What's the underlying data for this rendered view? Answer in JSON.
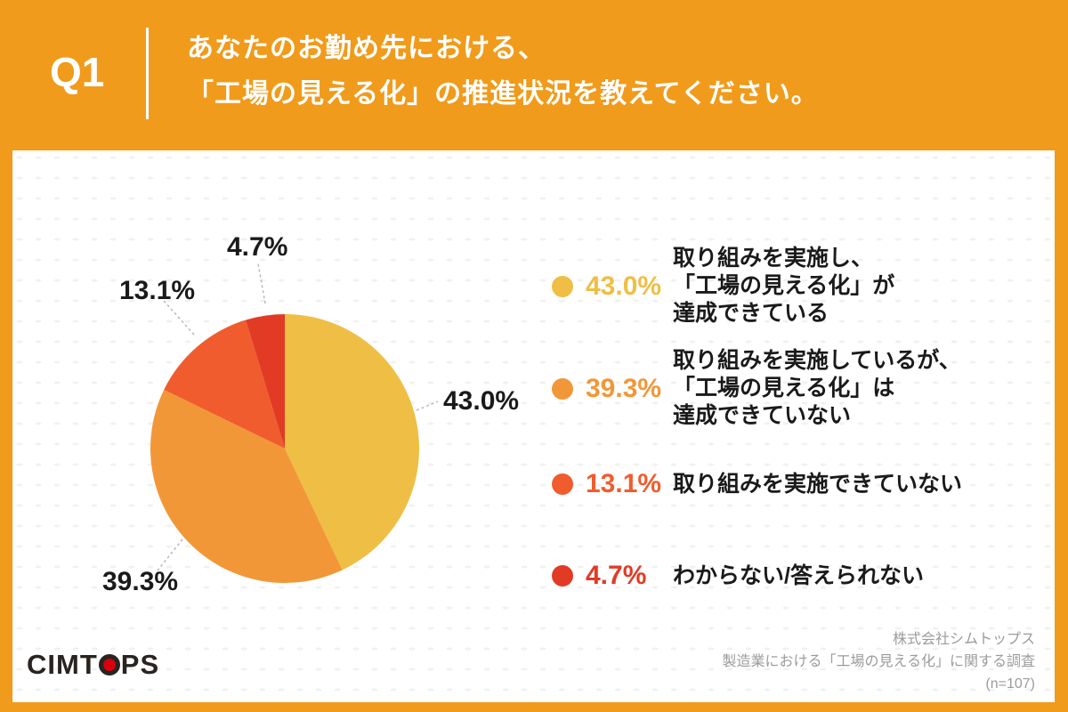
{
  "header": {
    "question_number": "Q1",
    "title_line1": "あなたのお勤め先における、",
    "title_line2": "「工場の見える化」の推進状況を教えてください。"
  },
  "chart_data": {
    "type": "pie",
    "title": "あなたのお勤め先における、「工場の見える化」の推進状況を教えてください。",
    "categories": [
      "取り組みを実施し、「工場の見える化」が達成できている",
      "取り組みを実施しているが、「工場の見える化」は達成できていない",
      "取り組みを実施できていない",
      "わからない/答えられない"
    ],
    "values": [
      43.0,
      39.3,
      13.1,
      4.7
    ],
    "value_labels": [
      "43.0%",
      "39.3%",
      "13.1%",
      "4.7%"
    ],
    "colors": [
      "#EFBE45",
      "#F29738",
      "#F05C2E",
      "#E13B26"
    ],
    "start_angle": "top",
    "direction": "clockwise",
    "sample_size": "(n=107)",
    "legend_position": "right"
  },
  "legend": {
    "items": [
      {
        "percent": "43.0%",
        "color": "#EFBE45",
        "lines": [
          "取り組みを実施し、",
          "「工場の見える化」が",
          "達成できている"
        ]
      },
      {
        "percent": "39.3%",
        "color": "#F29738",
        "lines": [
          "取り組みを実施しているが、",
          "「工場の見える化」は",
          "達成できていない"
        ]
      },
      {
        "percent": "13.1%",
        "color": "#F05C2E",
        "lines": [
          "取り組みを実施できていない"
        ]
      },
      {
        "percent": "4.7%",
        "color": "#E13B26",
        "lines": [
          "わからない/答えられない"
        ]
      }
    ]
  },
  "footer": {
    "logo_left": "CIMT",
    "logo_right": "PS",
    "source_line1": "株式会社シムトップス",
    "source_line2": "製造業における「工場の見える化」に関する調査",
    "source_line3": "(n=107)"
  },
  "colors": {
    "background_orange": "#F09B1B",
    "text_dark": "#1A1A1A",
    "source_gray": "#9B9B9B",
    "logo_dark": "#29241F",
    "logo_red": "#D7000F"
  }
}
